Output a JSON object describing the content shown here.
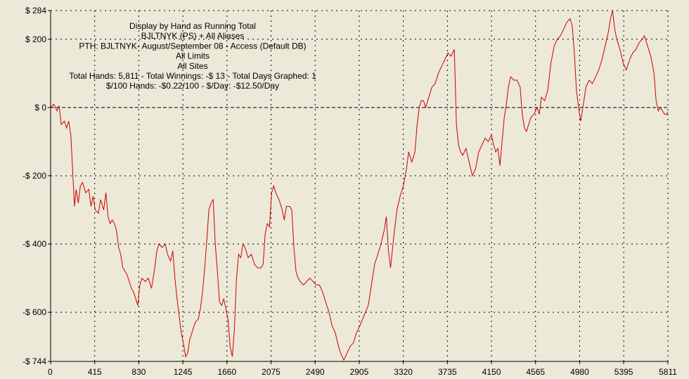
{
  "chart_data": {
    "type": "line",
    "title_lines": [
      "Display by Hand as Running Total",
      "BJLTNYK (PS) + All Aliases",
      "PTH: BJLTNYK- August/September 08 - Access (Default DB)",
      "All Limits",
      "All Sites",
      "Total Hands: 5,811 - Total Winnings: -$ 13 - Total Days Graphed: 1",
      "$/100 Hands: -$0.22/100 - $/Day: -$12.50/Day"
    ],
    "xlim": [
      0,
      5811
    ],
    "ylim": [
      -744,
      284
    ],
    "x_ticks": [
      0,
      415,
      830,
      1245,
      1660,
      2075,
      2490,
      2905,
      3320,
      3735,
      4150,
      4565,
      4980,
      5395,
      5811
    ],
    "x_tick_labels": [
      "0",
      "415",
      "830",
      "1245",
      "1660",
      "2075",
      "2490",
      "2905",
      "3320",
      "3735",
      "4150",
      "4565",
      "4980",
      "5395",
      "5811"
    ],
    "y_ticks": [
      284,
      200,
      0,
      -200,
      -400,
      -600,
      -744
    ],
    "y_tick_labels": [
      "$ 284",
      "$ 200",
      "$ 0",
      "-$ 200",
      "-$ 400",
      "-$ 600",
      "-$ 744"
    ],
    "grid": true,
    "zero_line": "dashed",
    "series": [
      {
        "color": "#cc0000",
        "points": [
          [
            0,
            0
          ],
          [
            30,
            10
          ],
          [
            60,
            -10
          ],
          [
            80,
            5
          ],
          [
            100,
            -50
          ],
          [
            130,
            -40
          ],
          [
            150,
            -60
          ],
          [
            170,
            -40
          ],
          [
            190,
            -80
          ],
          [
            210,
            -200
          ],
          [
            225,
            -290
          ],
          [
            240,
            -240
          ],
          [
            260,
            -280
          ],
          [
            280,
            -230
          ],
          [
            300,
            -220
          ],
          [
            330,
            -250
          ],
          [
            360,
            -240
          ],
          [
            380,
            -290
          ],
          [
            400,
            -260
          ],
          [
            420,
            -300
          ],
          [
            450,
            -310
          ],
          [
            470,
            -270
          ],
          [
            500,
            -300
          ],
          [
            520,
            -250
          ],
          [
            540,
            -320
          ],
          [
            560,
            -340
          ],
          [
            580,
            -330
          ],
          [
            600,
            -340
          ],
          [
            620,
            -360
          ],
          [
            640,
            -410
          ],
          [
            660,
            -430
          ],
          [
            680,
            -470
          ],
          [
            700,
            -480
          ],
          [
            720,
            -490
          ],
          [
            740,
            -510
          ],
          [
            760,
            -530
          ],
          [
            780,
            -540
          ],
          [
            800,
            -560
          ],
          [
            820,
            -580
          ],
          [
            840,
            -520
          ],
          [
            860,
            -500
          ],
          [
            890,
            -510
          ],
          [
            920,
            -500
          ],
          [
            950,
            -530
          ],
          [
            980,
            -470
          ],
          [
            1000,
            -420
          ],
          [
            1020,
            -400
          ],
          [
            1050,
            -410
          ],
          [
            1080,
            -400
          ],
          [
            1100,
            -430
          ],
          [
            1130,
            -450
          ],
          [
            1150,
            -420
          ],
          [
            1170,
            -500
          ],
          [
            1190,
            -560
          ],
          [
            1210,
            -610
          ],
          [
            1230,
            -660
          ],
          [
            1250,
            -690
          ],
          [
            1270,
            -730
          ],
          [
            1290,
            -720
          ],
          [
            1310,
            -680
          ],
          [
            1330,
            -660
          ],
          [
            1360,
            -630
          ],
          [
            1390,
            -620
          ],
          [
            1410,
            -590
          ],
          [
            1430,
            -540
          ],
          [
            1450,
            -470
          ],
          [
            1470,
            -390
          ],
          [
            1490,
            -300
          ],
          [
            1510,
            -280
          ],
          [
            1530,
            -270
          ],
          [
            1550,
            -400
          ],
          [
            1570,
            -480
          ],
          [
            1590,
            -570
          ],
          [
            1610,
            -580
          ],
          [
            1630,
            -560
          ],
          [
            1650,
            -590
          ],
          [
            1670,
            -620
          ],
          [
            1690,
            -700
          ],
          [
            1710,
            -730
          ],
          [
            1730,
            -650
          ],
          [
            1750,
            -500
          ],
          [
            1770,
            -430
          ],
          [
            1790,
            -440
          ],
          [
            1810,
            -400
          ],
          [
            1830,
            -410
          ],
          [
            1860,
            -440
          ],
          [
            1890,
            -430
          ],
          [
            1920,
            -460
          ],
          [
            1950,
            -470
          ],
          [
            1980,
            -470
          ],
          [
            2000,
            -460
          ],
          [
            2020,
            -370
          ],
          [
            2040,
            -340
          ],
          [
            2060,
            -350
          ],
          [
            2080,
            -250
          ],
          [
            2100,
            -230
          ],
          [
            2120,
            -250
          ],
          [
            2150,
            -270
          ],
          [
            2180,
            -300
          ],
          [
            2200,
            -330
          ],
          [
            2220,
            -290
          ],
          [
            2250,
            -290
          ],
          [
            2270,
            -300
          ],
          [
            2290,
            -410
          ],
          [
            2310,
            -480
          ],
          [
            2330,
            -500
          ],
          [
            2350,
            -510
          ],
          [
            2380,
            -520
          ],
          [
            2410,
            -510
          ],
          [
            2440,
            -500
          ],
          [
            2470,
            -510
          ],
          [
            2500,
            -520
          ],
          [
            2530,
            -520
          ],
          [
            2560,
            -540
          ],
          [
            2590,
            -570
          ],
          [
            2620,
            -600
          ],
          [
            2650,
            -640
          ],
          [
            2680,
            -660
          ],
          [
            2710,
            -700
          ],
          [
            2730,
            -720
          ],
          [
            2760,
            -740
          ],
          [
            2790,
            -720
          ],
          [
            2820,
            -700
          ],
          [
            2850,
            -690
          ],
          [
            2880,
            -660
          ],
          [
            2910,
            -640
          ],
          [
            2950,
            -610
          ],
          [
            2990,
            -580
          ],
          [
            3020,
            -520
          ],
          [
            3050,
            -460
          ],
          [
            3080,
            -430
          ],
          [
            3110,
            -400
          ],
          [
            3140,
            -360
          ],
          [
            3160,
            -320
          ],
          [
            3180,
            -420
          ],
          [
            3200,
            -470
          ],
          [
            3230,
            -380
          ],
          [
            3260,
            -300
          ],
          [
            3290,
            -260
          ],
          [
            3320,
            -230
          ],
          [
            3350,
            -180
          ],
          [
            3370,
            -130
          ],
          [
            3400,
            -160
          ],
          [
            3430,
            -130
          ],
          [
            3450,
            -50
          ],
          [
            3470,
            0
          ],
          [
            3490,
            20
          ],
          [
            3510,
            20
          ],
          [
            3530,
            0
          ],
          [
            3560,
            30
          ],
          [
            3590,
            60
          ],
          [
            3620,
            70
          ],
          [
            3650,
            100
          ],
          [
            3680,
            120
          ],
          [
            3710,
            140
          ],
          [
            3740,
            160
          ],
          [
            3770,
            150
          ],
          [
            3800,
            170
          ],
          [
            3820,
            -50
          ],
          [
            3840,
            -110
          ],
          [
            3860,
            -130
          ],
          [
            3880,
            -140
          ],
          [
            3910,
            -120
          ],
          [
            3940,
            -160
          ],
          [
            3970,
            -200
          ],
          [
            4000,
            -180
          ],
          [
            4030,
            -130
          ],
          [
            4060,
            -110
          ],
          [
            4090,
            -90
          ],
          [
            4120,
            -100
          ],
          [
            4150,
            -80
          ],
          [
            4170,
            -110
          ],
          [
            4190,
            -130
          ],
          [
            4210,
            -120
          ],
          [
            4230,
            -170
          ],
          [
            4250,
            -100
          ],
          [
            4270,
            -30
          ],
          [
            4290,
            10
          ],
          [
            4310,
            60
          ],
          [
            4330,
            90
          ],
          [
            4360,
            80
          ],
          [
            4390,
            80
          ],
          [
            4420,
            60
          ],
          [
            4440,
            -20
          ],
          [
            4460,
            -60
          ],
          [
            4480,
            -70
          ],
          [
            4500,
            -50
          ],
          [
            4520,
            -30
          ],
          [
            4550,
            -20
          ],
          [
            4580,
            0
          ],
          [
            4600,
            -20
          ],
          [
            4620,
            30
          ],
          [
            4650,
            20
          ],
          [
            4680,
            50
          ],
          [
            4710,
            130
          ],
          [
            4740,
            180
          ],
          [
            4770,
            200
          ],
          [
            4800,
            210
          ],
          [
            4830,
            230
          ],
          [
            4860,
            250
          ],
          [
            4890,
            260
          ],
          [
            4910,
            240
          ],
          [
            4930,
            160
          ],
          [
            4950,
            50
          ],
          [
            4970,
            0
          ],
          [
            4990,
            -40
          ],
          [
            5010,
            0
          ],
          [
            5040,
            60
          ],
          [
            5070,
            80
          ],
          [
            5100,
            70
          ],
          [
            5130,
            90
          ],
          [
            5160,
            110
          ],
          [
            5190,
            140
          ],
          [
            5220,
            180
          ],
          [
            5250,
            220
          ],
          [
            5270,
            260
          ],
          [
            5290,
            284
          ],
          [
            5310,
            230
          ],
          [
            5330,
            200
          ],
          [
            5360,
            170
          ],
          [
            5390,
            130
          ],
          [
            5420,
            110
          ],
          [
            5450,
            140
          ],
          [
            5480,
            160
          ],
          [
            5510,
            170
          ],
          [
            5540,
            190
          ],
          [
            5570,
            200
          ],
          [
            5590,
            210
          ],
          [
            5620,
            180
          ],
          [
            5650,
            150
          ],
          [
            5680,
            100
          ],
          [
            5700,
            20
          ],
          [
            5720,
            -10
          ],
          [
            5740,
            0
          ],
          [
            5760,
            -10
          ],
          [
            5780,
            -20
          ],
          [
            5800,
            -20
          ],
          [
            5811,
            -13
          ]
        ]
      }
    ]
  }
}
